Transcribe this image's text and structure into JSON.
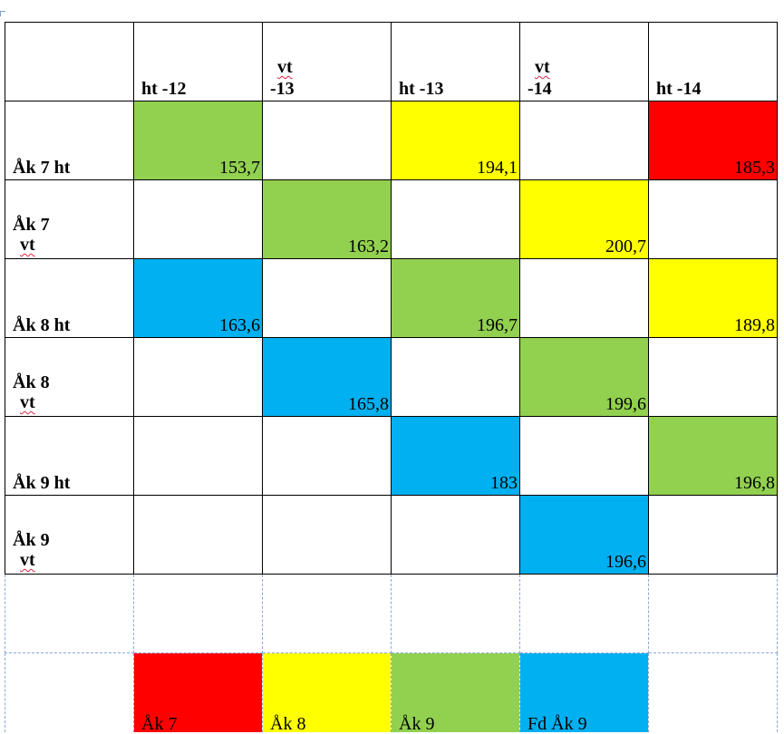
{
  "colors": {
    "green": "#92d050",
    "yellow": "#ffff00",
    "red": "#ff0000",
    "blue": "#00b0f0",
    "white": "#ffffff"
  },
  "columns": [
    "ht -12",
    "vt -13",
    "ht -13",
    "vt -14",
    "ht -14"
  ],
  "rows": [
    {
      "label": "Åk 7 ht",
      "cells": [
        {
          "value": "153,7",
          "color": "green"
        },
        {
          "value": "",
          "color": "white"
        },
        {
          "value": "194,1",
          "color": "yellow"
        },
        {
          "value": "",
          "color": "white"
        },
        {
          "value": "185,3",
          "color": "red"
        }
      ]
    },
    {
      "label": "Åk 7 vt",
      "cells": [
        {
          "value": "",
          "color": "white"
        },
        {
          "value": "163,2",
          "color": "green"
        },
        {
          "value": "",
          "color": "white"
        },
        {
          "value": "200,7",
          "color": "yellow"
        },
        {
          "value": "",
          "color": "white"
        }
      ]
    },
    {
      "label": "Åk 8 ht",
      "cells": [
        {
          "value": "163,6",
          "color": "blue"
        },
        {
          "value": "",
          "color": "white"
        },
        {
          "value": "196,7",
          "color": "green"
        },
        {
          "value": "",
          "color": "white"
        },
        {
          "value": "189,8",
          "color": "yellow"
        }
      ]
    },
    {
      "label": "Åk 8 vt",
      "cells": [
        {
          "value": "",
          "color": "white"
        },
        {
          "value": "165,8",
          "color": "blue"
        },
        {
          "value": "",
          "color": "white"
        },
        {
          "value": "199,6",
          "color": "green"
        },
        {
          "value": "",
          "color": "white"
        }
      ]
    },
    {
      "label": "Åk 9 ht",
      "cells": [
        {
          "value": "",
          "color": "white"
        },
        {
          "value": "",
          "color": "white"
        },
        {
          "value": "183",
          "color": "blue"
        },
        {
          "value": "",
          "color": "white"
        },
        {
          "value": "196,8",
          "color": "green"
        }
      ]
    },
    {
      "label": "Åk 9 vt",
      "cells": [
        {
          "value": "",
          "color": "white"
        },
        {
          "value": "",
          "color": "white"
        },
        {
          "value": "",
          "color": "white"
        },
        {
          "value": "196,6",
          "color": "blue"
        },
        {
          "value": "",
          "color": "white"
        }
      ]
    }
  ],
  "legend": [
    {
      "label": "Åk 7",
      "color": "red"
    },
    {
      "label": "Åk 8",
      "color": "yellow"
    },
    {
      "label": "Åk 9",
      "color": "green"
    },
    {
      "label": "Fd Åk 9",
      "color": "blue"
    }
  ]
}
